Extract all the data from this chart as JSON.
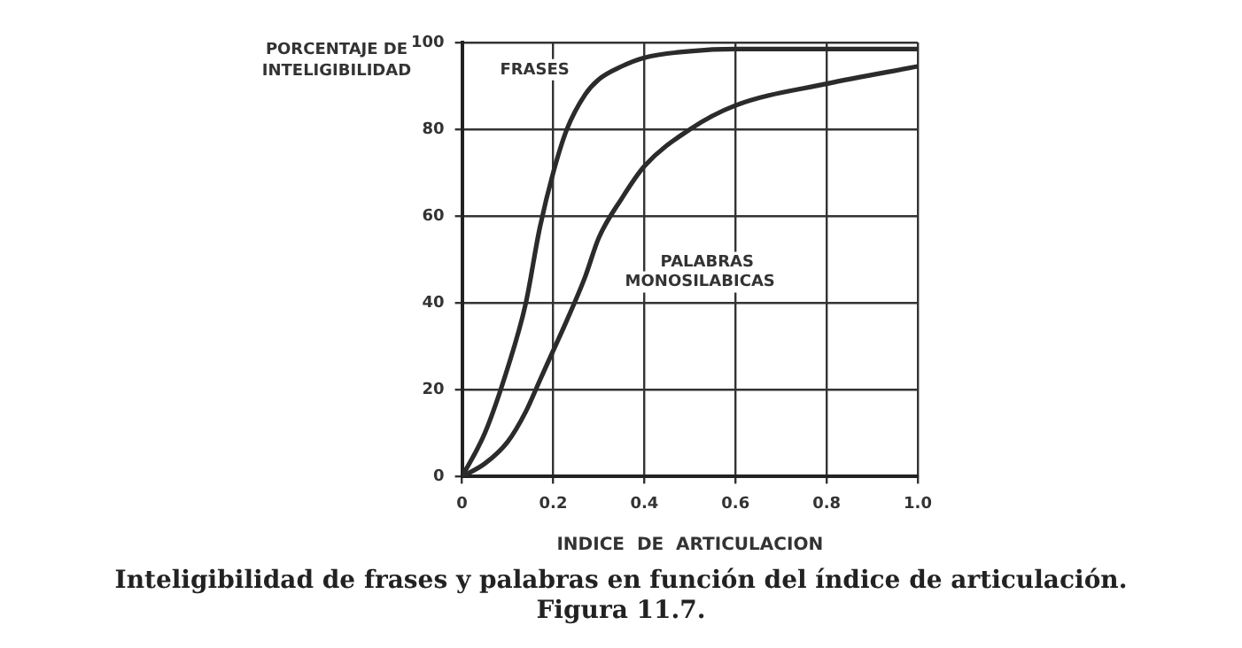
{
  "chart_data": {
    "type": "line",
    "xlabel": "INDICE  DE  ARTICULACION",
    "ylabel": "PORCENTAJE DE INTELIGIBILIDAD",
    "x": [
      0,
      0.05,
      0.1,
      0.14,
      0.17,
      0.2,
      0.23,
      0.27,
      0.3,
      0.35,
      0.4,
      0.5,
      0.6,
      0.8,
      1.0
    ],
    "series": [
      {
        "name": "FRASES",
        "color": "#2b2b2b",
        "values": [
          0,
          10,
          25,
          40,
          57,
          70,
          80,
          88,
          91.5,
          94.5,
          96.5,
          98,
          98.5,
          98.5,
          98.5
        ]
      },
      {
        "name": "PALABRAS MONOSILABICAS",
        "color": "#2b2b2b",
        "values": [
          0,
          3,
          8,
          15,
          22,
          29,
          36,
          46,
          55,
          64,
          71.5,
          80,
          85.5,
          90.5,
          94.5
        ]
      }
    ],
    "xlim": [
      0,
      1.0
    ],
    "xticks": [
      0,
      {
        "value": 0.2,
        "label": "0.2"
      },
      {
        "value": 0.4,
        "label": "0.4"
      },
      {
        "value": 0.6,
        "label": "0.6"
      },
      {
        "value": 0.8,
        "label": "0.8"
      },
      {
        "value": 1.0,
        "label": "1.0"
      }
    ],
    "ylim": [
      0,
      100
    ],
    "yticks": [
      0,
      20,
      40,
      60,
      80,
      100
    ],
    "grid": true,
    "legend": false,
    "marker": "none",
    "line_style": "solid",
    "annotations": [
      "Inteligibilidad de frases y palabras en función del índice de articulación.",
      "Figura 11.7."
    ]
  }
}
